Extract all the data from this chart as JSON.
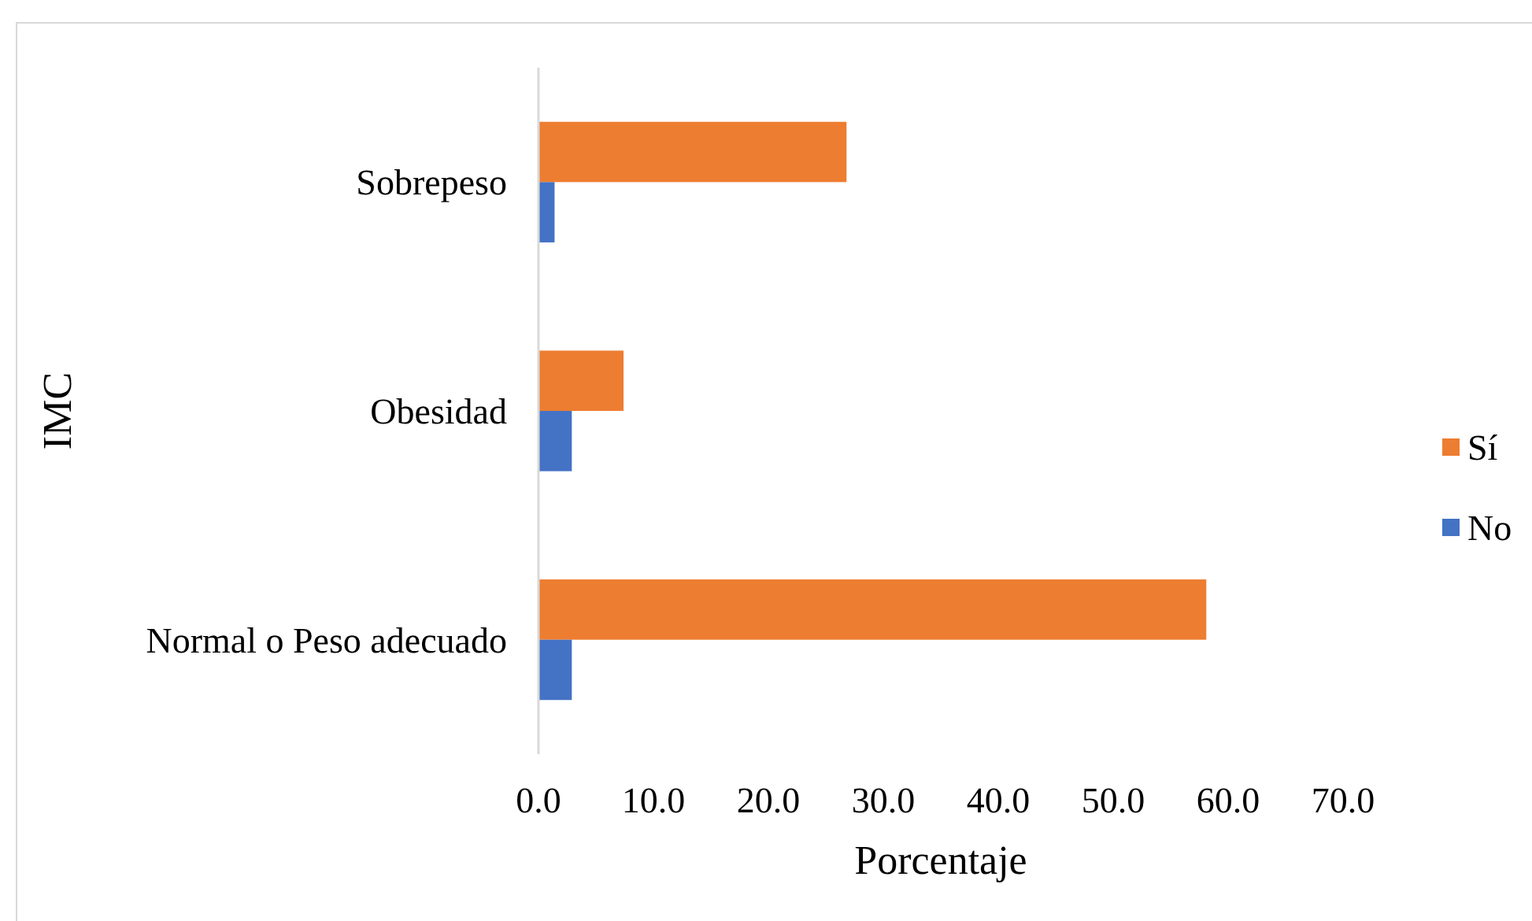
{
  "chart_data": {
    "type": "bar",
    "orientation": "horizontal",
    "ylabel": "IMC",
    "xlabel": "Porcentaje",
    "categories": [
      "Sobrepeso",
      "Obesidad",
      "Normal o Peso adecuado"
    ],
    "series": [
      {
        "name": "Sí",
        "color": "#ed7d31",
        "values": [
          26.8,
          7.4,
          58.1
        ]
      },
      {
        "name": "No",
        "color": "#4472c4",
        "values": [
          1.4,
          2.9,
          2.9
        ]
      }
    ],
    "xlim": [
      0,
      70
    ],
    "xticks": [
      {
        "value": 0,
        "label": "0.0"
      },
      {
        "value": 10,
        "label": "10.0"
      },
      {
        "value": 20,
        "label": "20.0"
      },
      {
        "value": 30,
        "label": "30.0"
      },
      {
        "value": 40,
        "label": "40.0"
      },
      {
        "value": 50,
        "label": "50.0"
      },
      {
        "value": 60,
        "label": "60.0"
      },
      {
        "value": 70,
        "label": "70.0"
      }
    ],
    "legend": "right"
  }
}
